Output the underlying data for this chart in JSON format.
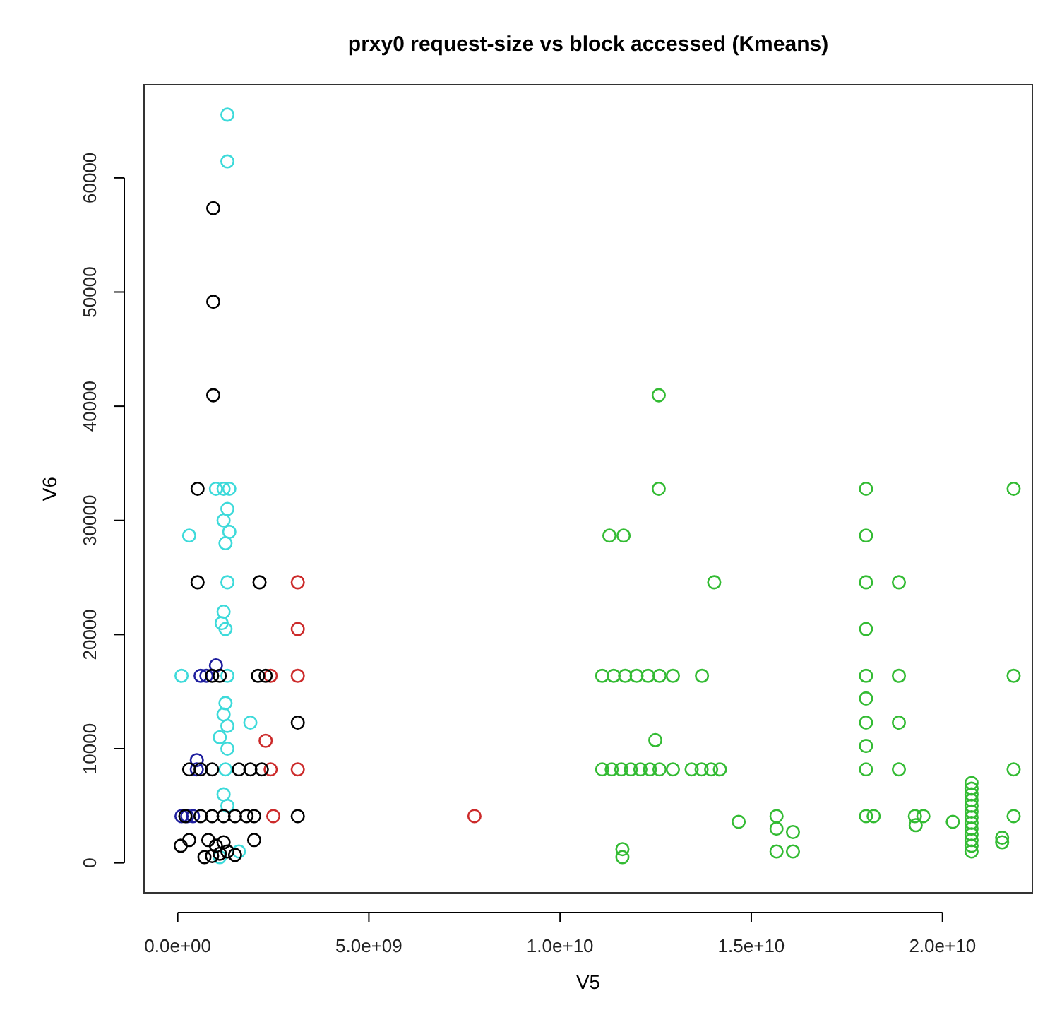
{
  "chart_data": {
    "type": "scatter",
    "title": "prxy0   request-size vs block accessed (Kmeans)",
    "xlabel": "V5",
    "ylabel": "V6",
    "marker": "circle",
    "xlim": [
      -880000000.0,
      22350000000.0
    ],
    "ylim": [
      -2621,
      68157
    ],
    "xticks": [
      {
        "value": 0,
        "label": "0.0e+00"
      },
      {
        "value": 5000000000.0,
        "label": "5.0e+09"
      },
      {
        "value": 10000000000.0,
        "label": "1.0e+10"
      },
      {
        "value": 15000000000.0,
        "label": "1.5e+10"
      },
      {
        "value": 20000000000.0,
        "label": "2.0e+10"
      }
    ],
    "yticks": [
      0,
      10000,
      20000,
      30000,
      40000,
      50000,
      60000
    ],
    "series": [
      {
        "color": "#33bb33",
        "x": [
          12580000000.0,
          12580000000.0,
          11290000000.0,
          11660000000.0,
          14030000000.0,
          11100000000.0,
          11400000000.0,
          11700000000.0,
          12000000000.0,
          12300000000.0,
          12600000000.0,
          12950000000.0,
          13710000000.0,
          12490000000.0,
          11100000000.0,
          11350000000.0,
          11600000000.0,
          11850000000.0,
          12100000000.0,
          12350000000.0,
          12600000000.0,
          12950000000.0,
          13440000000.0,
          13700000000.0,
          13950000000.0,
          14180000000.0,
          14670000000.0,
          15660000000.0,
          15660000000.0,
          16090000000.0,
          15660000000.0,
          16090000000.0,
          11630000000.0,
          11630000000.0,
          18000000000.0,
          18000000000.0,
          18000000000.0,
          18000000000.0,
          18000000000.0,
          18000000000.0,
          18000000000.0,
          18000000000.0,
          18000000000.0,
          18000000000.0,
          18200000000.0,
          18860000000.0,
          18860000000.0,
          18860000000.0,
          18860000000.0,
          21860000000.0,
          21860000000.0,
          21860000000.0,
          21860000000.0,
          19280000000.0,
          19500000000.0,
          19300000000.0,
          20270000000.0,
          20760000000.0,
          20760000000.0,
          20760000000.0,
          20760000000.0,
          20760000000.0,
          20760000000.0,
          20760000000.0,
          20760000000.0,
          20760000000.0,
          20760000000.0,
          20760000000.0,
          20760000000.0,
          20760000000.0,
          21560000000.0,
          21560000000.0
        ],
        "values": [
          40960,
          32768,
          28672,
          28672,
          24576,
          16384,
          16384,
          16384,
          16384,
          16384,
          16384,
          16384,
          16384,
          10752,
          8192,
          8192,
          8192,
          8192,
          8192,
          8192,
          8192,
          8192,
          8192,
          8192,
          8192,
          8192,
          3600,
          4096,
          3000,
          2700,
          1000,
          1000,
          1200,
          500,
          32768,
          28672,
          24576,
          20480,
          16384,
          14400,
          12288,
          10240,
          8192,
          4096,
          4096,
          24576,
          16384,
          12288,
          8192,
          32768,
          16384,
          8192,
          4096,
          4096,
          4096,
          3300,
          3600,
          7000,
          6500,
          6000,
          5500,
          5000,
          4500,
          4000,
          3500,
          3000,
          2500,
          2000,
          1500,
          1000,
          2200,
          1800
        ]
      },
      {
        "color": "#cc2a2a",
        "x": [
          3140000000.0,
          3140000000.0,
          3140000000.0,
          2430000000.0,
          2300000000.0,
          3140000000.0,
          2430000000.0,
          2500000000.0,
          7760000000.0
        ],
        "values": [
          24576,
          20480,
          16384,
          16384,
          10700,
          8192,
          8192,
          4096,
          4096
        ]
      },
      {
        "color": "#3ddada",
        "x": [
          1300000000.0,
          1300000000.0,
          1000000000.0,
          1200000000.0,
          1350000000.0,
          1300000000.0,
          1200000000.0,
          1350000000.0,
          1250000000.0,
          300000000.0,
          1300000000.0,
          1200000000.0,
          1150000000.0,
          1250000000.0,
          100000000.0,
          1300000000.0,
          1250000000.0,
          1200000000.0,
          1300000000.0,
          1900000000.0,
          1100000000.0,
          1300000000.0,
          1250000000.0,
          1200000000.0,
          1300000000.0,
          1600000000.0,
          1100000000.0
        ],
        "values": [
          65536,
          61440,
          32768,
          32768,
          32768,
          31000,
          30000,
          29000,
          28000,
          28672,
          24576,
          22000,
          21000,
          20480,
          16384,
          16384,
          14000,
          13000,
          12000,
          12288,
          11000,
          10000,
          8192,
          6000,
          5000,
          1000,
          500
        ]
      },
      {
        "color": "#1e1e9e",
        "x": [
          600000000.0,
          750000000.0,
          1000000000.0,
          100000000.0,
          250000000.0,
          400000000.0,
          500000000.0,
          500000000.0
        ],
        "values": [
          16384,
          16384,
          17300,
          4096,
          4096,
          4096,
          8192,
          9000
        ]
      },
      {
        "color": "#000000",
        "x": [
          520000000.0,
          930000000.0,
          930000000.0,
          930000000.0,
          520000000.0,
          2140000000.0,
          900000000.0,
          1100000000.0,
          2100000000.0,
          2300000000.0,
          3140000000.0,
          300000000.0,
          600000000.0,
          900000000.0,
          1600000000.0,
          1900000000.0,
          2200000000.0,
          200000000.0,
          600000000.0,
          900000000.0,
          1200000000.0,
          1500000000.0,
          1800000000.0,
          2000000000.0,
          3140000000.0,
          700000000.0,
          900000000.0,
          1100000000.0,
          1300000000.0,
          1500000000.0,
          800000000.0,
          1000000000.0,
          1200000000.0,
          80000000.0,
          300000000.0,
          2000000000.0
        ],
        "values": [
          24576,
          57344,
          49152,
          40960,
          32768,
          24576,
          16384,
          16384,
          16384,
          16384,
          12288,
          8192,
          8192,
          8192,
          8192,
          8192,
          8192,
          4096,
          4096,
          4096,
          4096,
          4096,
          4096,
          4096,
          4096,
          500,
          600,
          800,
          1000,
          700,
          2000,
          1500,
          1800,
          1500,
          2000,
          2000
        ]
      }
    ]
  }
}
